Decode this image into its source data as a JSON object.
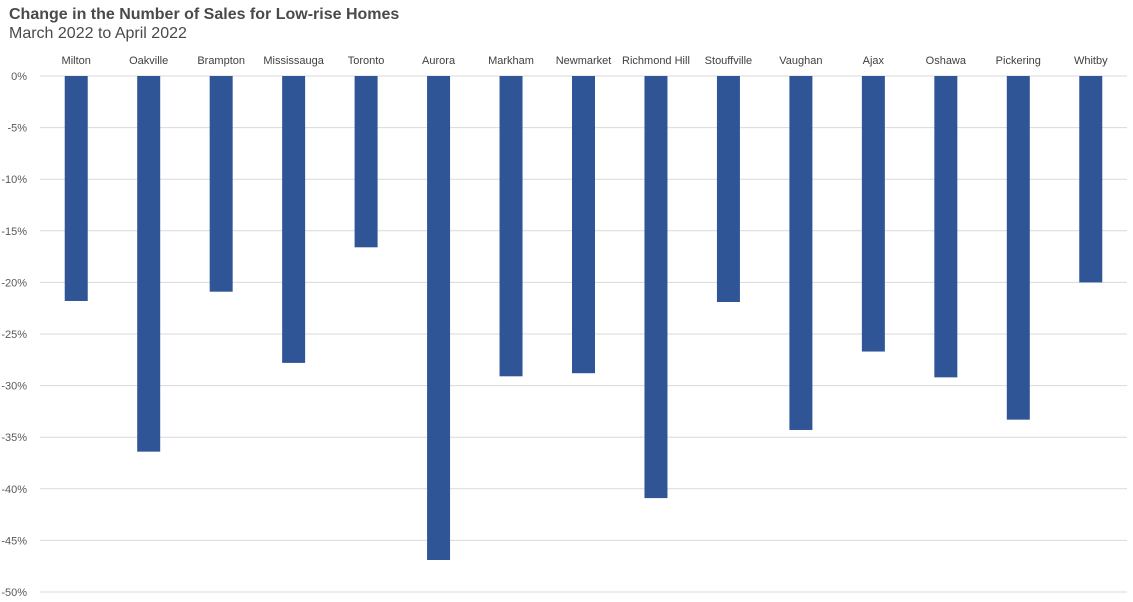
{
  "chart_data": {
    "type": "bar",
    "title": "Change in the Number of Sales for Low-rise Homes",
    "subtitle": "March 2022 to April 2022",
    "xlabel": "",
    "ylabel": "",
    "categories": [
      "Milton",
      "Oakville",
      "Brampton",
      "Mississauga",
      "Toronto",
      "Aurora",
      "Markham",
      "Newmarket",
      "Richmond Hill",
      "Stouffville",
      "Vaughan",
      "Ajax",
      "Oshawa",
      "Pickering",
      "Whitby"
    ],
    "values": [
      -21.8,
      -36.4,
      -20.9,
      -27.8,
      -16.6,
      -46.9,
      -29.1,
      -28.8,
      -40.9,
      -21.9,
      -34.3,
      -26.7,
      -29.2,
      -33.3,
      -20.0
    ],
    "ylim": [
      -50,
      0
    ],
    "yticks": [
      0,
      -5,
      -10,
      -15,
      -20,
      -25,
      -30,
      -35,
      -40,
      -45,
      -50
    ],
    "ytick_labels": [
      "0%",
      "-5%",
      "-10%",
      "-15%",
      "-20%",
      "-25%",
      "-30%",
      "-35%",
      "-40%",
      "-45%",
      "-50%"
    ],
    "grid": true,
    "legend": "none",
    "bar_color": "#2f5597",
    "grid_color": "#d9d9d9"
  }
}
